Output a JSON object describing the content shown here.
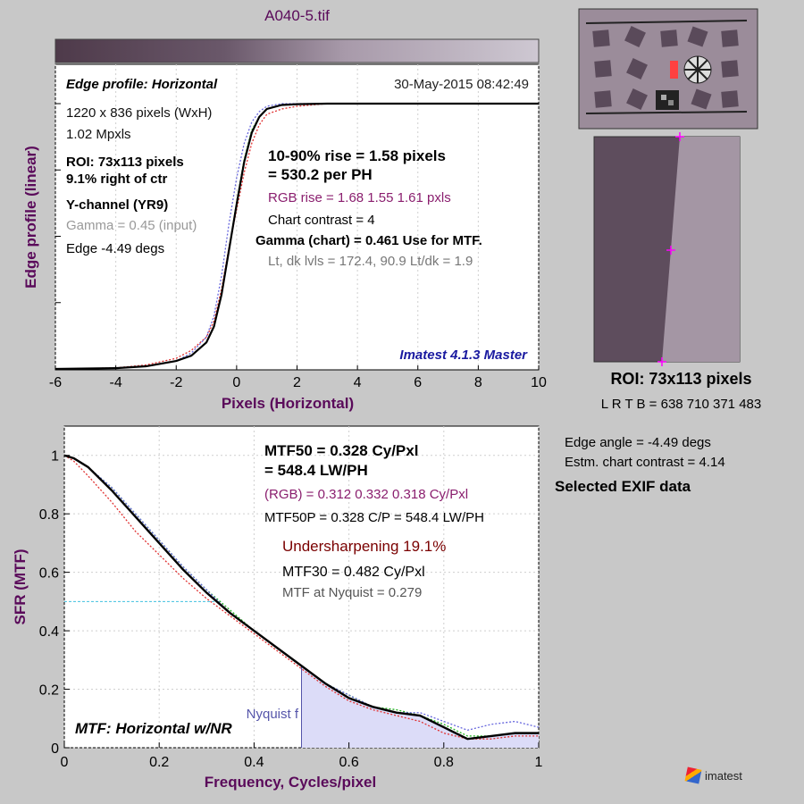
{
  "window": {
    "title": "A040-5.tif"
  },
  "edge_panel": {
    "title": "Edge profile: Horizontal",
    "timestamp": "30-May-2015 08:42:49",
    "info_lines": [
      {
        "text": "1220 x 836 pixels (WxH)",
        "bold": false,
        "color": "#111111"
      },
      {
        "text": "1.02 Mpxls",
        "bold": false,
        "color": "#111111"
      },
      {
        "text": "ROI:  73x113 pixels",
        "bold": true,
        "color": "#000000"
      },
      {
        "text": "9.1% right of ctr",
        "bold": true,
        "color": "#000000"
      },
      {
        "text": "Y-channel  (YR9)",
        "bold": true,
        "color": "#000000"
      },
      {
        "text": "Gamma = 0.45 (input)",
        "bold": false,
        "color": "#999999"
      },
      {
        "text": "Edge -4.49 degs",
        "bold": false,
        "color": "#000000"
      }
    ],
    "rise_lines": [
      {
        "text": "10-90% rise = 1.58 pixels",
        "bold": true,
        "color": "#000000"
      },
      {
        "text": "= 530.2 per PH",
        "bold": true,
        "color": "#000000"
      },
      {
        "text": "RGB rise = 1.68  1.55  1.61 pxls",
        "bold": false,
        "color": "#8a1e6e"
      },
      {
        "text": "Chart contrast = 4",
        "bold": false,
        "color": "#000000"
      },
      {
        "text": "Gamma (chart) = 0.461  Use for MTF.",
        "bold": true,
        "color": "#000000"
      },
      {
        "text": "Lt, dk lvls = 172.4, 90.9   Lt/dk = 1.9",
        "bold": false,
        "color": "#777777"
      }
    ],
    "version": "Imatest 4.1.3 Master"
  },
  "mtf_panel": {
    "lines": [
      {
        "text": "MTF50 = 0.328 Cy/Pxl",
        "bold": true,
        "color": "#000000"
      },
      {
        "text": "= 548.4 LW/PH",
        "bold": true,
        "color": "#000000"
      },
      {
        "text": "(RGB) = 0.312  0.332  0.318 Cy/Pxl",
        "bold": false,
        "color": "#8a1e6e"
      },
      {
        "text": "MTF50P = 0.328 C/P = 548.4 LW/PH",
        "bold": false,
        "color": "#000000"
      },
      {
        "text": "Undersharpening 19.1%",
        "bold": false,
        "color": "#7a0000"
      },
      {
        "text": "MTF30 = 0.482 Cy/Pxl",
        "bold": false,
        "color": "#000000"
      },
      {
        "text": "MTF at Nyquist = 0.279",
        "bold": false,
        "color": "#555555"
      }
    ],
    "nyquist_label": "Nyquist f",
    "panel_title": "MTF: Horizontal w/NR"
  },
  "roi_panel": {
    "caption": "ROI:  73x113 pixels",
    "coords": "L R  T B = 638 710  371 483"
  },
  "side_info": {
    "edge_angle": "Edge angle = -4.49 degs",
    "chart_contrast": "Estm. chart contrast = 4.14",
    "exif_heading": "Selected EXIF data"
  },
  "logo": {
    "text": "imatest"
  },
  "colors": {
    "accent_title": "#5a0a5a",
    "version_blue": "#1a1aa0",
    "nyquist_fill": "#dcdcf8",
    "red": "#e03030",
    "green": "#20b020",
    "blue": "#6666dd"
  },
  "chart_data": [
    {
      "type": "line",
      "xlabel": "Pixels (Horizontal)",
      "ylabel": "Edge profile (linear)",
      "xlim": [
        -6,
        10
      ],
      "ylim": [
        0,
        1
      ],
      "xticks": [
        -6,
        -4,
        -2,
        0,
        2,
        4,
        6,
        8,
        10
      ],
      "grid": true,
      "series": [
        {
          "color": "#000000",
          "x": [
            -6,
            -4,
            -3,
            -2,
            -1.5,
            -1,
            -0.75,
            -0.5,
            -0.25,
            0,
            0.25,
            0.5,
            0.75,
            1,
            1.5,
            2,
            3,
            4,
            10
          ],
          "y": [
            0,
            0.003,
            0.01,
            0.03,
            0.05,
            0.1,
            0.16,
            0.28,
            0.45,
            0.62,
            0.78,
            0.89,
            0.95,
            0.98,
            0.995,
            0.998,
            1,
            1,
            1
          ]
        },
        {
          "color": "#e03030",
          "x": [
            -6,
            -4,
            -3,
            -2,
            -1.5,
            -1,
            -0.75,
            -0.5,
            -0.25,
            0,
            0.25,
            0.5,
            0.75,
            1,
            1.5,
            2,
            3,
            4,
            10
          ],
          "y": [
            0,
            0.004,
            0.015,
            0.04,
            0.07,
            0.12,
            0.18,
            0.3,
            0.46,
            0.6,
            0.74,
            0.85,
            0.92,
            0.96,
            0.98,
            0.99,
            1,
            1,
            1
          ]
        },
        {
          "color": "#20b020",
          "x": [
            -6,
            -4,
            -3,
            -2,
            -1.5,
            -1,
            -0.75,
            -0.5,
            -0.25,
            0,
            0.25,
            0.5,
            0.75,
            1,
            1.5,
            2,
            3,
            4,
            10
          ],
          "y": [
            0,
            0.003,
            0.01,
            0.03,
            0.05,
            0.1,
            0.16,
            0.28,
            0.45,
            0.63,
            0.79,
            0.9,
            0.95,
            0.98,
            0.995,
            0.998,
            1,
            1,
            1
          ]
        },
        {
          "color": "#6666dd",
          "x": [
            -6,
            -4,
            -3,
            -2,
            -1.5,
            -1,
            -0.75,
            -0.5,
            -0.25,
            0,
            0.25,
            0.5,
            0.75,
            1,
            1.5,
            2,
            3,
            4,
            10
          ],
          "y": [
            0,
            0.003,
            0.01,
            0.03,
            0.06,
            0.12,
            0.2,
            0.35,
            0.55,
            0.72,
            0.85,
            0.93,
            0.97,
            0.99,
            1,
            1,
            1,
            1,
            1
          ]
        }
      ]
    },
    {
      "type": "line",
      "xlabel": "Frequency, Cycles/pixel",
      "ylabel": "SFR (MTF)",
      "xlim": [
        0,
        1
      ],
      "ylim": [
        0,
        1.1
      ],
      "xticks": [
        0,
        0.2,
        0.4,
        0.6,
        0.8,
        1
      ],
      "yticks": [
        0,
        0.2,
        0.4,
        0.6,
        0.8,
        1
      ],
      "grid": true,
      "mtf50_ref": 0.5,
      "nyquist": 0.5,
      "series": [
        {
          "color": "#000000",
          "x": [
            0,
            0.02,
            0.05,
            0.1,
            0.15,
            0.2,
            0.25,
            0.3,
            0.35,
            0.4,
            0.45,
            0.5,
            0.55,
            0.6,
            0.65,
            0.7,
            0.75,
            0.8,
            0.85,
            0.9,
            0.95,
            1
          ],
          "y": [
            1,
            0.99,
            0.96,
            0.88,
            0.79,
            0.7,
            0.61,
            0.53,
            0.46,
            0.4,
            0.34,
            0.28,
            0.22,
            0.17,
            0.14,
            0.12,
            0.11,
            0.07,
            0.03,
            0.04,
            0.05,
            0.05
          ]
        },
        {
          "color": "#e03030",
          "x": [
            0,
            0.02,
            0.05,
            0.1,
            0.15,
            0.2,
            0.25,
            0.3,
            0.35,
            0.4,
            0.45,
            0.5,
            0.55,
            0.6,
            0.65,
            0.7,
            0.75,
            0.8,
            0.85,
            0.9,
            0.95,
            1
          ],
          "y": [
            1,
            0.98,
            0.93,
            0.84,
            0.74,
            0.66,
            0.58,
            0.51,
            0.45,
            0.39,
            0.33,
            0.27,
            0.21,
            0.16,
            0.13,
            0.11,
            0.09,
            0.05,
            0.03,
            0.03,
            0.04,
            0.04
          ]
        },
        {
          "color": "#20b020",
          "x": [
            0,
            0.02,
            0.05,
            0.1,
            0.15,
            0.2,
            0.25,
            0.3,
            0.35,
            0.4,
            0.45,
            0.5,
            0.55,
            0.6,
            0.65,
            0.7,
            0.75,
            0.8,
            0.85,
            0.9,
            0.95,
            1
          ],
          "y": [
            1,
            0.99,
            0.96,
            0.89,
            0.8,
            0.71,
            0.62,
            0.54,
            0.47,
            0.4,
            0.34,
            0.28,
            0.22,
            0.18,
            0.14,
            0.13,
            0.11,
            0.08,
            0.04,
            0.04,
            0.05,
            0.05
          ]
        },
        {
          "color": "#6666dd",
          "x": [
            0,
            0.02,
            0.05,
            0.1,
            0.15,
            0.2,
            0.25,
            0.3,
            0.35,
            0.4,
            0.45,
            0.5,
            0.55,
            0.6,
            0.65,
            0.7,
            0.75,
            0.8,
            0.85,
            0.9,
            0.95,
            1
          ],
          "y": [
            1,
            0.99,
            0.96,
            0.89,
            0.8,
            0.71,
            0.62,
            0.54,
            0.46,
            0.4,
            0.34,
            0.28,
            0.22,
            0.18,
            0.14,
            0.12,
            0.12,
            0.09,
            0.06,
            0.08,
            0.09,
            0.07
          ]
        }
      ]
    }
  ]
}
